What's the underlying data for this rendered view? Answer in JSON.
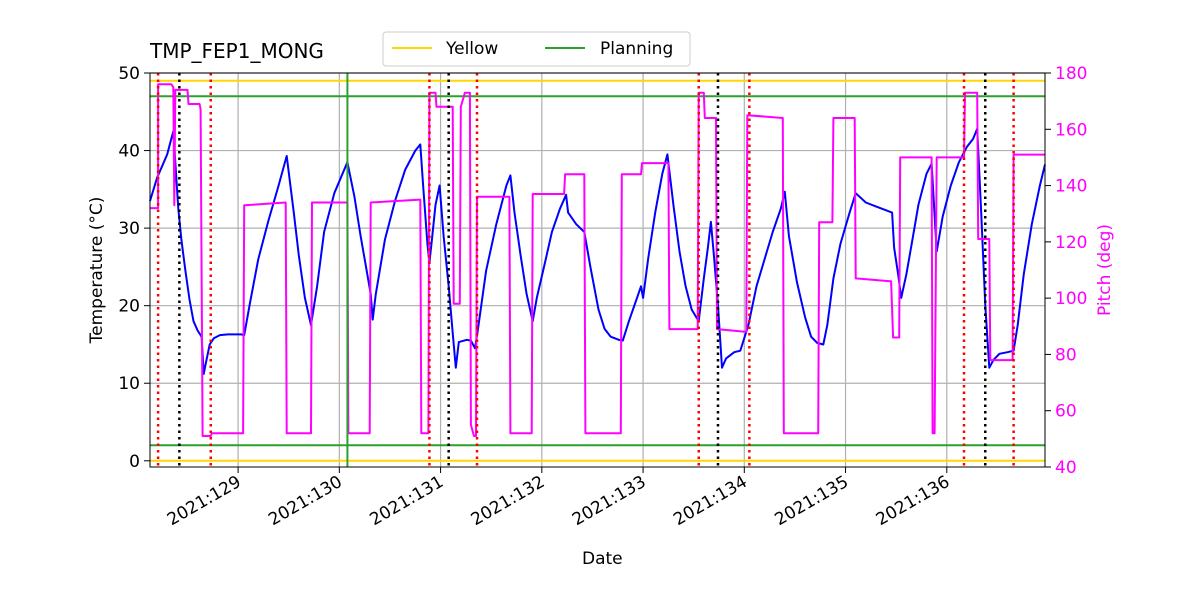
{
  "chart_data": {
    "type": "line",
    "title": "TMP_FEP1_MONG",
    "xlabel": "Date",
    "ylabel": "Temperature ($^\\circ$C)",
    "ylabel_display": "Temperature (°C)",
    "y2label": "Pitch (deg)",
    "xlim": [
      128.13,
      136.97
    ],
    "ylim": [
      -0.8,
      50
    ],
    "y2lim": [
      40,
      180
    ],
    "x_ticks": [
      {
        "value": 129,
        "label": "2021:129"
      },
      {
        "value": 130,
        "label": "2021:130"
      },
      {
        "value": 131,
        "label": "2021:131"
      },
      {
        "value": 132,
        "label": "2021:132"
      },
      {
        "value": 133,
        "label": "2021:133"
      },
      {
        "value": 134,
        "label": "2021:134"
      },
      {
        "value": 135,
        "label": "2021:135"
      },
      {
        "value": 136,
        "label": "2021:136"
      }
    ],
    "y_ticks": [
      0,
      10,
      20,
      30,
      40,
      50
    ],
    "y2_ticks": [
      40,
      60,
      80,
      100,
      120,
      140,
      160,
      180
    ],
    "grid": true,
    "legend": {
      "placement": "top-center",
      "entries": [
        {
          "label": "Yellow",
          "color": "#ffd700"
        },
        {
          "label": "Planning",
          "color": "#2ca02c"
        }
      ]
    },
    "limit_lines": [
      {
        "name": "Yellow",
        "value": 49,
        "color": "#ffd700"
      },
      {
        "name": "Planning",
        "value": 47,
        "color": "#2ca02c"
      },
      {
        "name": "Planning",
        "value": 2,
        "color": "#2ca02c"
      },
      {
        "name": "Yellow",
        "value": 0,
        "color": "#ffd700"
      }
    ],
    "planning_vertical": {
      "x": 130.08,
      "color": "#2ca02c"
    },
    "red_dotted_x": [
      128.21,
      128.73,
      130.89,
      131.36,
      133.55,
      134.05,
      136.17,
      136.66
    ],
    "black_dotted_x": [
      128.42,
      131.08,
      133.74,
      136.38
    ],
    "series": [
      {
        "name": "Temperature",
        "axis": "left",
        "color": "#0000ff",
        "points": [
          [
            128.13,
            33.5
          ],
          [
            128.2,
            36.5
          ],
          [
            128.26,
            38.3
          ],
          [
            128.3,
            39.5
          ],
          [
            128.36,
            42.5
          ],
          [
            128.38,
            38.5
          ],
          [
            128.41,
            32.5
          ],
          [
            128.44,
            28.5
          ],
          [
            128.48,
            24.5
          ],
          [
            128.52,
            20.8
          ],
          [
            128.56,
            18.0
          ],
          [
            128.6,
            16.8
          ],
          [
            128.64,
            16.0
          ],
          [
            128.66,
            11.2
          ],
          [
            128.68,
            12.5
          ],
          [
            128.72,
            15.0
          ],
          [
            128.76,
            15.8
          ],
          [
            128.82,
            16.2
          ],
          [
            128.9,
            16.3
          ],
          [
            129.03,
            16.3
          ],
          [
            129.06,
            16.2
          ],
          [
            129.12,
            20.5
          ],
          [
            129.2,
            26.0
          ],
          [
            129.3,
            31.0
          ],
          [
            129.4,
            35.5
          ],
          [
            129.48,
            39.3
          ],
          [
            129.55,
            32.0
          ],
          [
            129.6,
            26.5
          ],
          [
            129.66,
            21.0
          ],
          [
            129.72,
            17.5
          ],
          [
            129.78,
            22.5
          ],
          [
            129.85,
            29.5
          ],
          [
            129.95,
            34.5
          ],
          [
            130.08,
            38.5
          ],
          [
            130.15,
            34.0
          ],
          [
            130.21,
            29.0
          ],
          [
            130.27,
            24.5
          ],
          [
            130.31,
            21.5
          ],
          [
            130.33,
            18.2
          ],
          [
            130.36,
            21.5
          ],
          [
            130.45,
            28.5
          ],
          [
            130.55,
            33.5
          ],
          [
            130.65,
            37.5
          ],
          [
            130.75,
            40.0
          ],
          [
            130.8,
            40.8
          ],
          [
            130.83,
            35.0
          ],
          [
            130.87,
            28.0
          ],
          [
            130.89,
            25.5
          ],
          [
            130.91,
            28.0
          ],
          [
            130.95,
            33.0
          ],
          [
            130.99,
            35.5
          ],
          [
            131.03,
            29.0
          ],
          [
            131.08,
            22.5
          ],
          [
            131.12,
            16.5
          ],
          [
            131.15,
            12.0
          ],
          [
            131.18,
            15.3
          ],
          [
            131.26,
            15.6
          ],
          [
            131.3,
            15.5
          ],
          [
            131.34,
            14.5
          ],
          [
            131.37,
            17.0
          ],
          [
            131.45,
            24.5
          ],
          [
            131.55,
            30.5
          ],
          [
            131.65,
            35.5
          ],
          [
            131.69,
            36.8
          ],
          [
            131.73,
            32.0
          ],
          [
            131.79,
            26.5
          ],
          [
            131.85,
            21.5
          ],
          [
            131.91,
            18.0
          ],
          [
            131.95,
            21.0
          ],
          [
            132.03,
            25.5
          ],
          [
            132.1,
            29.5
          ],
          [
            132.18,
            32.5
          ],
          [
            132.24,
            34.3
          ],
          [
            132.26,
            32.0
          ],
          [
            132.34,
            30.5
          ],
          [
            132.42,
            29.5
          ],
          [
            132.48,
            25.0
          ],
          [
            132.56,
            19.5
          ],
          [
            132.62,
            17.0
          ],
          [
            132.68,
            16.0
          ],
          [
            132.76,
            15.6
          ],
          [
            132.8,
            15.5
          ],
          [
            132.86,
            18.0
          ],
          [
            132.94,
            21.0
          ],
          [
            132.98,
            22.5
          ],
          [
            133.0,
            21.0
          ],
          [
            133.05,
            26.0
          ],
          [
            133.12,
            32.0
          ],
          [
            133.19,
            37.0
          ],
          [
            133.24,
            39.5
          ],
          [
            133.3,
            33.0
          ],
          [
            133.36,
            27.0
          ],
          [
            133.42,
            22.5
          ],
          [
            133.48,
            19.5
          ],
          [
            133.55,
            18.0
          ],
          [
            133.6,
            23.5
          ],
          [
            133.64,
            27.5
          ],
          [
            133.67,
            30.8
          ],
          [
            133.7,
            26.5
          ],
          [
            133.74,
            20.0
          ],
          [
            133.78,
            12.0
          ],
          [
            133.82,
            13.2
          ],
          [
            133.9,
            14.0
          ],
          [
            133.96,
            14.2
          ],
          [
            134.04,
            17.5
          ],
          [
            134.12,
            22.5
          ],
          [
            134.2,
            26.0
          ],
          [
            134.28,
            29.5
          ],
          [
            134.36,
            32.5
          ],
          [
            134.4,
            34.7
          ],
          [
            134.44,
            29.0
          ],
          [
            134.52,
            23.0
          ],
          [
            134.6,
            18.5
          ],
          [
            134.66,
            16.0
          ],
          [
            134.72,
            15.2
          ],
          [
            134.78,
            15.0
          ],
          [
            134.82,
            17.5
          ],
          [
            134.88,
            23.5
          ],
          [
            134.95,
            28.0
          ],
          [
            135.04,
            32.0
          ],
          [
            135.1,
            34.5
          ],
          [
            135.2,
            33.3
          ],
          [
            135.3,
            32.8
          ],
          [
            135.42,
            32.2
          ],
          [
            135.46,
            32.0
          ],
          [
            135.48,
            27.5
          ],
          [
            135.52,
            24.0
          ],
          [
            135.55,
            21.0
          ],
          [
            135.6,
            24.0
          ],
          [
            135.66,
            28.5
          ],
          [
            135.72,
            33.0
          ],
          [
            135.8,
            37.0
          ],
          [
            135.85,
            38.3
          ],
          [
            135.9,
            27.0
          ],
          [
            135.96,
            31.5
          ],
          [
            136.04,
            35.5
          ],
          [
            136.12,
            38.5
          ],
          [
            136.2,
            40.5
          ],
          [
            136.26,
            41.5
          ],
          [
            136.3,
            42.8
          ],
          [
            136.34,
            32.0
          ],
          [
            136.38,
            20.0
          ],
          [
            136.42,
            12.0
          ],
          [
            136.46,
            13.0
          ],
          [
            136.52,
            13.8
          ],
          [
            136.6,
            14.0
          ],
          [
            136.66,
            14.2
          ],
          [
            136.7,
            17.5
          ],
          [
            136.76,
            24.0
          ],
          [
            136.84,
            30.5
          ],
          [
            136.92,
            35.5
          ],
          [
            136.97,
            38.2
          ]
        ]
      },
      {
        "name": "Pitch",
        "axis": "right",
        "color": "#ff00ff",
        "points": [
          [
            128.13,
            132
          ],
          [
            128.21,
            132
          ],
          [
            128.21,
            176
          ],
          [
            128.34,
            176
          ],
          [
            128.36,
            175
          ],
          [
            128.37,
            133
          ],
          [
            128.38,
            174
          ],
          [
            128.5,
            174
          ],
          [
            128.51,
            169
          ],
          [
            128.62,
            169
          ],
          [
            128.63,
            167
          ],
          [
            128.65,
            51
          ],
          [
            128.73,
            51
          ],
          [
            128.74,
            52
          ],
          [
            129.05,
            52
          ],
          [
            129.06,
            133
          ],
          [
            129.47,
            134
          ],
          [
            129.48,
            52
          ],
          [
            129.72,
            52
          ],
          [
            129.73,
            134
          ],
          [
            130.08,
            134
          ],
          [
            130.09,
            52
          ],
          [
            130.3,
            52
          ],
          [
            130.31,
            134
          ],
          [
            130.8,
            135
          ],
          [
            130.81,
            52
          ],
          [
            130.88,
            52
          ],
          [
            130.89,
            173
          ],
          [
            130.95,
            173
          ],
          [
            130.96,
            168
          ],
          [
            131.12,
            168
          ],
          [
            131.13,
            98
          ],
          [
            131.19,
            98
          ],
          [
            131.2,
            168
          ],
          [
            131.24,
            173
          ],
          [
            131.29,
            173
          ],
          [
            131.3,
            55
          ],
          [
            131.33,
            51
          ],
          [
            131.35,
            51
          ],
          [
            131.36,
            136
          ],
          [
            131.68,
            136
          ],
          [
            131.69,
            52
          ],
          [
            131.9,
            52
          ],
          [
            131.91,
            137
          ],
          [
            132.22,
            137
          ],
          [
            132.23,
            144
          ],
          [
            132.42,
            144
          ],
          [
            132.43,
            52
          ],
          [
            132.78,
            52
          ],
          [
            132.79,
            144
          ],
          [
            132.98,
            144
          ],
          [
            132.99,
            148
          ],
          [
            133.25,
            148
          ],
          [
            133.26,
            89
          ],
          [
            133.54,
            89
          ],
          [
            133.55,
            173
          ],
          [
            133.6,
            173
          ],
          [
            133.61,
            164
          ],
          [
            133.72,
            164
          ],
          [
            133.73,
            89
          ],
          [
            134.02,
            88
          ],
          [
            134.03,
            165
          ],
          [
            134.38,
            164
          ],
          [
            134.39,
            52
          ],
          [
            134.73,
            52
          ],
          [
            134.74,
            127
          ],
          [
            134.87,
            127
          ],
          [
            134.88,
            164
          ],
          [
            135.09,
            164
          ],
          [
            135.1,
            107
          ],
          [
            135.45,
            106
          ],
          [
            135.47,
            86
          ],
          [
            135.53,
            86
          ],
          [
            135.54,
            150
          ],
          [
            135.85,
            150
          ],
          [
            135.86,
            52
          ],
          [
            135.88,
            52
          ],
          [
            135.9,
            150
          ],
          [
            136.17,
            150
          ],
          [
            136.18,
            173
          ],
          [
            136.3,
            173
          ],
          [
            136.31,
            121
          ],
          [
            136.42,
            121
          ],
          [
            136.43,
            78
          ],
          [
            136.65,
            78
          ],
          [
            136.66,
            151
          ],
          [
            136.97,
            151
          ]
        ]
      }
    ]
  }
}
